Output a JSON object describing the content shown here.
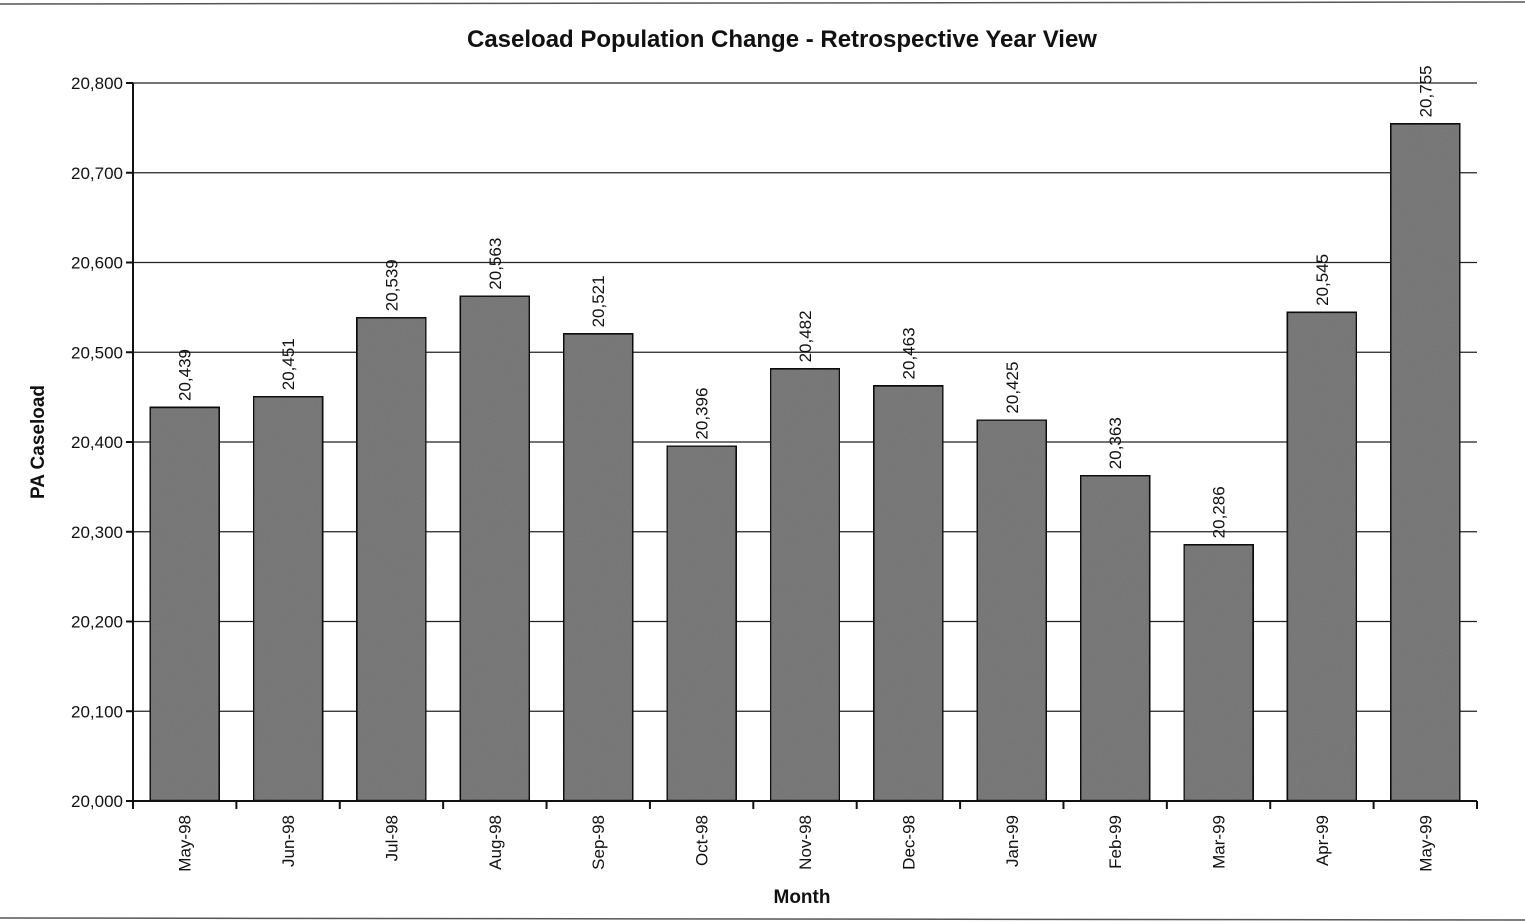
{
  "chart_data": {
    "type": "bar",
    "title": "Caseload Population Change - Retrospective Year View",
    "xlabel": "Month",
    "ylabel": "PA Caseload",
    "categories": [
      "May-98",
      "Jun-98",
      "Jul-98",
      "Aug-98",
      "Sep-98",
      "Oct-98",
      "Nov-98",
      "Dec-98",
      "Jan-99",
      "Feb-99",
      "Mar-99",
      "Apr-99",
      "May-99"
    ],
    "values": [
      20439,
      20451,
      20539,
      20563,
      20521,
      20396,
      20482,
      20463,
      20425,
      20363,
      20286,
      20545,
      20755
    ],
    "data_labels": [
      "20,439",
      "20,451",
      "20,539",
      "20,563",
      "20,521",
      "20,396",
      "20,482",
      "20,463",
      "20,425",
      "20,363",
      "20,286",
      "20,545",
      "20,755"
    ],
    "ylim": [
      20000,
      20800
    ],
    "yticks": [
      20000,
      20100,
      20200,
      20300,
      20400,
      20500,
      20600,
      20700,
      20800
    ],
    "ytick_labels": [
      "20,000",
      "20,100",
      "20,200",
      "20,300",
      "20,400",
      "20,500",
      "20,600",
      "20,700",
      "20,800"
    ],
    "grid": true,
    "legend": "none",
    "bar_color": "#7d7d7d",
    "bar_edge_color": "#111111"
  }
}
